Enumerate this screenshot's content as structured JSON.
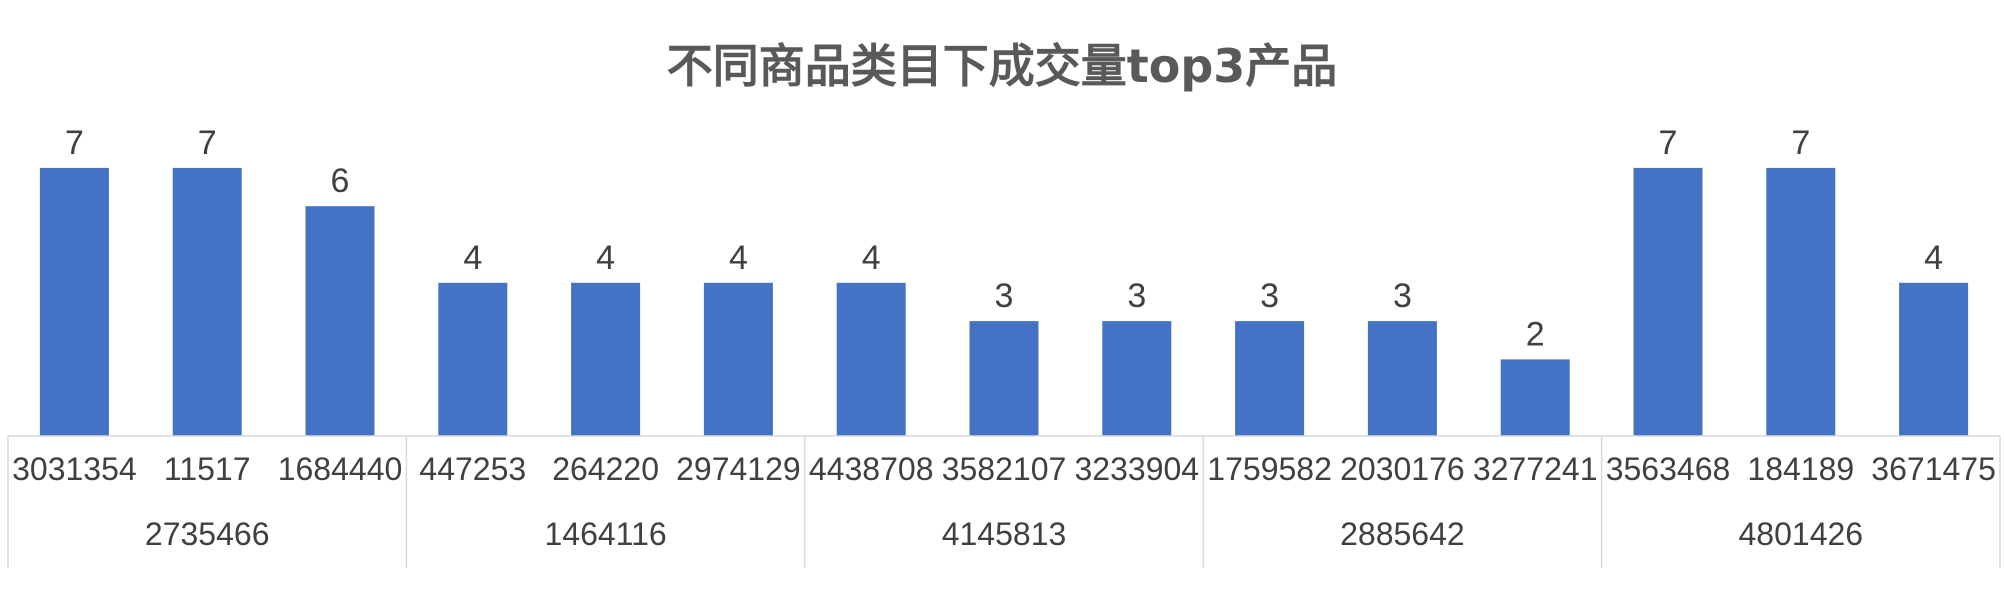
{
  "chart_data": {
    "type": "bar",
    "title": "不同商品类目下成交量top3产品",
    "xlabel": "",
    "ylabel": "",
    "ylim": [
      0,
      7
    ],
    "grid": false,
    "legend": "none",
    "colors": {
      "bar": "#4472C4",
      "title": "#595959",
      "text": "#404040",
      "axis": "#D9D9D9"
    },
    "groups": [
      {
        "category": "2735466",
        "items": [
          "3031354",
          "11517",
          "1684440"
        ]
      },
      {
        "category": "1464116",
        "items": [
          "447253",
          "264220",
          "2974129"
        ]
      },
      {
        "category": "4145813",
        "items": [
          "4438708",
          "3582107",
          "3233904"
        ]
      },
      {
        "category": "2885642",
        "items": [
          "1759582",
          "2030176",
          "3277241"
        ]
      },
      {
        "category": "4801426",
        "items": [
          "3563468",
          "184189",
          "3671475"
        ]
      }
    ],
    "categories": [
      "3031354",
      "11517",
      "1684440",
      "447253",
      "264220",
      "2974129",
      "4438708",
      "3582107",
      "3233904",
      "1759582",
      "2030176",
      "3277241",
      "3563468",
      "184189",
      "3671475"
    ],
    "values": [
      7,
      7,
      6,
      4,
      4,
      4,
      4,
      3,
      3,
      3,
      3,
      2,
      7,
      7,
      4
    ]
  }
}
